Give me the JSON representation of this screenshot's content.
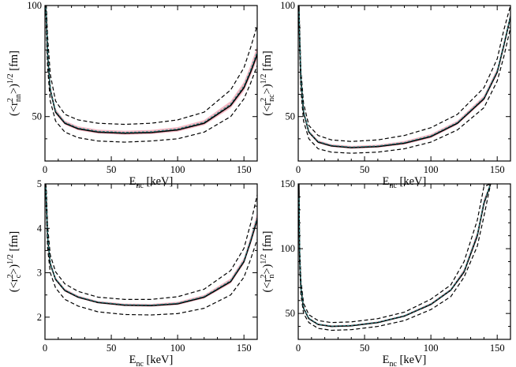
{
  "chart_data": [
    {
      "id": "rnn",
      "type": "line",
      "ylabel": {
        "open": "(<r",
        "sup": "2",
        "sub": "nn",
        "close": ">)",
        "pow": "1/2",
        "unit": "[fm]"
      },
      "xlabel": {
        "main": "E",
        "sub": "nc",
        "unit": "[keV]"
      },
      "xlim": [
        0,
        160
      ],
      "ylim": [
        30,
        100
      ],
      "xticks": [
        0,
        50,
        100,
        150
      ],
      "yticks": [
        50,
        100
      ],
      "model": {
        "A": 10.0,
        "emin": 65,
        "ymin": 42.5,
        "k": 0.0032,
        "p": 1.5
      },
      "series": [
        {
          "name": "central",
          "style": "solid",
          "x": [
            0.5,
            1,
            2,
            4,
            8,
            15,
            25,
            40,
            60,
            80,
            100,
            120,
            140,
            150,
            155,
            160
          ],
          "y": [
            100,
            95,
            78,
            62,
            52,
            47,
            44.5,
            43,
            42.5,
            42.8,
            44,
            47,
            55,
            63,
            70,
            78
          ]
        },
        {
          "name": "upper",
          "style": "dashed",
          "x": [
            0.5,
            1,
            2,
            4,
            8,
            15,
            25,
            40,
            60,
            80,
            100,
            120,
            140,
            150,
            155,
            160
          ],
          "y": [
            100,
            100,
            86,
            69,
            57,
            51,
            48.5,
            47,
            46.5,
            47,
            48.5,
            52,
            62,
            72,
            81,
            91
          ]
        },
        {
          "name": "lower",
          "style": "dashed",
          "x": [
            0.5,
            1,
            2,
            4,
            8,
            15,
            25,
            40,
            60,
            80,
            100,
            120,
            140,
            150,
            155,
            160
          ],
          "y": [
            100,
            89,
            72,
            57,
            48,
            43,
            40.5,
            39,
            38.5,
            39,
            40,
            43,
            50,
            58,
            65,
            73
          ]
        }
      ]
    },
    {
      "id": "rnc",
      "type": "line",
      "ylabel": {
        "open": "(<r",
        "sup": "2",
        "sub": "nc",
        "close": ">)",
        "pow": "1/2",
        "unit": "[fm]"
      },
      "xlabel": {
        "main": "E",
        "sub": "nc",
        "unit": "[keV]"
      },
      "xlim": [
        0,
        160
      ],
      "ylim": [
        30,
        100
      ],
      "xticks": [
        0,
        50,
        100,
        150
      ],
      "yticks": [
        50,
        100
      ],
      "model": {
        "A": 7.5,
        "emin": 45,
        "ymin": 36,
        "k": 0.0038,
        "p": 1.5
      },
      "series": [
        {
          "name": "central",
          "style": "solid",
          "x": [
            0.5,
            1,
            2,
            4,
            8,
            15,
            25,
            40,
            60,
            80,
            100,
            120,
            140,
            150,
            155,
            160
          ],
          "y": [
            100,
            86,
            67,
            52,
            43,
            38.5,
            36.8,
            36,
            36.5,
            38,
            41,
            47,
            58,
            70,
            82,
            95
          ]
        },
        {
          "name": "upper",
          "style": "dashed",
          "x": [
            0.5,
            1,
            2,
            4,
            8,
            15,
            25,
            40,
            60,
            80,
            100,
            120,
            140,
            150,
            155,
            160
          ],
          "y": [
            100,
            91,
            71,
            56,
            46,
            41.5,
            39.5,
            38.8,
            39.5,
            41.5,
            45,
            51,
            63,
            76,
            89,
            100
          ]
        },
        {
          "name": "lower",
          "style": "dashed",
          "x": [
            0.5,
            1,
            2,
            4,
            8,
            15,
            25,
            40,
            60,
            80,
            100,
            120,
            140,
            150,
            155,
            160
          ],
          "y": [
            100,
            81,
            62,
            48,
            40,
            35.5,
            34,
            33.5,
            34,
            35.5,
            38.5,
            44,
            54,
            66,
            77,
            90
          ]
        }
      ]
    },
    {
      "id": "rc",
      "type": "line",
      "ylabel": {
        "open": "(<r",
        "sup": "2",
        "sub": "c",
        "close": ">)",
        "pow": "1/2",
        "unit": "[fm]"
      },
      "xlabel": {
        "main": "E",
        "sub": "nc",
        "unit": "[keV]"
      },
      "xlim": [
        0,
        160
      ],
      "ylim": [
        1.5,
        5
      ],
      "xticks": [
        0,
        50,
        100,
        150
      ],
      "yticks": [
        2,
        3,
        4,
        5
      ],
      "model": {
        "A": 0.5,
        "emin": 75,
        "ymin": 2.25,
        "k": 0.00019,
        "p": 1.5
      },
      "series": [
        {
          "name": "central",
          "style": "solid",
          "x": [
            0.5,
            1,
            2,
            4,
            8,
            15,
            25,
            40,
            60,
            80,
            100,
            120,
            140,
            150,
            155,
            160
          ],
          "y": [
            5,
            4.6,
            3.8,
            3.2,
            2.85,
            2.6,
            2.45,
            2.33,
            2.27,
            2.26,
            2.3,
            2.45,
            2.8,
            3.25,
            3.7,
            4.2
          ]
        },
        {
          "name": "upper",
          "style": "dashed",
          "x": [
            0.5,
            1,
            2,
            4,
            8,
            15,
            25,
            40,
            60,
            80,
            100,
            120,
            140,
            150,
            155,
            160
          ],
          "y": [
            5,
            4.9,
            4.05,
            3.4,
            3.02,
            2.75,
            2.58,
            2.45,
            2.4,
            2.4,
            2.46,
            2.63,
            3.05,
            3.55,
            4.1,
            4.75
          ]
        },
        {
          "name": "lower",
          "style": "dashed",
          "x": [
            0.5,
            1,
            2,
            4,
            8,
            15,
            25,
            40,
            60,
            80,
            100,
            120,
            140,
            150,
            155,
            160
          ],
          "y": [
            5,
            4.35,
            3.55,
            3.0,
            2.66,
            2.4,
            2.25,
            2.12,
            2.06,
            2.05,
            2.08,
            2.2,
            2.5,
            2.9,
            3.3,
            3.75
          ]
        }
      ]
    },
    {
      "id": "rn",
      "type": "line",
      "ylabel": {
        "open": "(<r",
        "sup": "2",
        "sub": "n",
        "close": ">)",
        "pow": "1/2",
        "unit": "[fm]"
      },
      "xlabel": {
        "main": "E",
        "sub": "nc",
        "unit": "[keV]"
      },
      "xlim": [
        0,
        160
      ],
      "ylim": [
        30,
        150
      ],
      "xticks": [
        0,
        50,
        100,
        150
      ],
      "yticks": [
        50,
        100,
        150
      ],
      "model": {
        "A": 7.0,
        "emin": 35,
        "ymin": 40,
        "k": 0.0062,
        "p": 1.7
      },
      "series": [
        {
          "name": "central",
          "style": "solid",
          "x": [
            0.5,
            1,
            2,
            4,
            8,
            15,
            25,
            40,
            60,
            80,
            100,
            115,
            125,
            135,
            140,
            145
          ],
          "y": [
            150,
            95,
            70,
            54,
            46,
            41.5,
            40,
            40.5,
            43,
            48,
            57,
            68,
            82,
            110,
            135,
            150
          ]
        },
        {
          "name": "upper",
          "style": "dashed",
          "x": [
            0.5,
            1,
            2,
            4,
            8,
            15,
            25,
            40,
            60,
            80,
            100,
            115,
            125,
            135,
            140,
            145
          ],
          "y": [
            150,
            105,
            76,
            58,
            49,
            44.5,
            43,
            43.5,
            46,
            51,
            61,
            72,
            90,
            122,
            148,
            150
          ]
        },
        {
          "name": "lower",
          "style": "dashed",
          "x": [
            0.5,
            1,
            2,
            4,
            8,
            15,
            25,
            40,
            60,
            80,
            100,
            115,
            125,
            135,
            140,
            145
          ],
          "y": [
            150,
            88,
            65,
            50,
            43,
            38.5,
            37,
            37.5,
            40,
            44.5,
            53,
            63,
            78,
            102,
            125,
            150
          ]
        }
      ]
    }
  ]
}
